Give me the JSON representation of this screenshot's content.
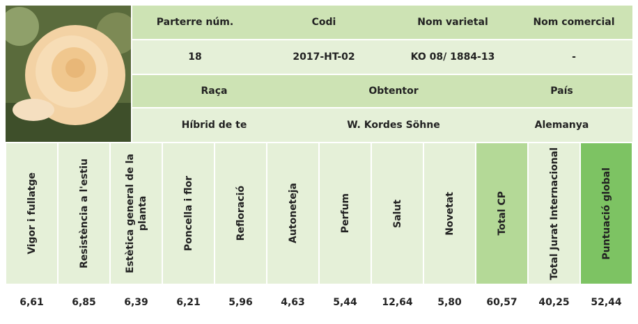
{
  "header": {
    "columns": [
      "Parterre núm.",
      "Codi",
      "Nom varietal",
      "Nom comercial"
    ],
    "values": [
      "18",
      "2017-HT-02",
      "KO 08/ 1884-13",
      "-"
    ]
  },
  "origin": {
    "columns": [
      "Raça",
      "Obtentor",
      "País"
    ],
    "values": [
      "Híbrid de te",
      "W. Kordes Söhne",
      "Alemanya"
    ]
  },
  "scores": {
    "columns": [
      "Vigor i fullatge",
      "Resistència a l'estiu",
      "Estètica general de la planta",
      "Poncella i flor",
      "Refloració",
      "Autoneteja",
      "Perfum",
      "Salut",
      "Novetat",
      "Total CP",
      "Total Jurat Internacional",
      "Puntuació global"
    ],
    "values": [
      "6,61",
      "6,85",
      "6,39",
      "6,21",
      "5,96",
      "4,63",
      "5,44",
      "12,64",
      "5,80",
      "60,57",
      "40,25",
      "52,44"
    ]
  }
}
